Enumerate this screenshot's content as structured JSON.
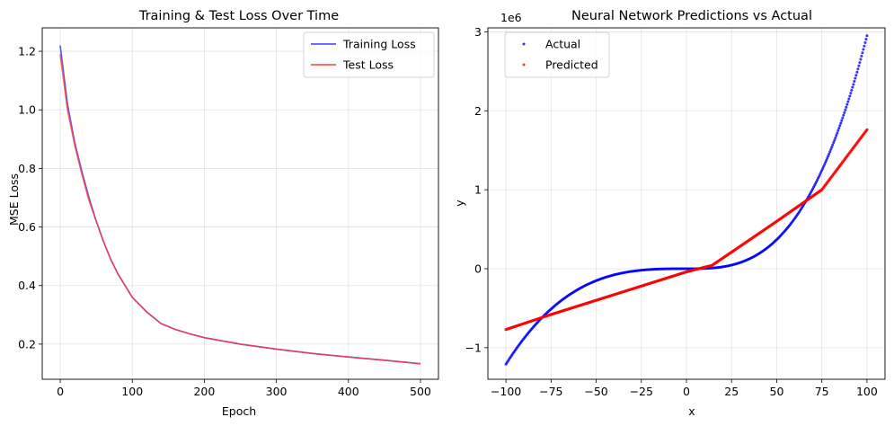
{
  "chart_data": [
    {
      "type": "line",
      "title": "Training & Test Loss Over Time",
      "xlabel": "Epoch",
      "ylabel": "MSE Loss",
      "xlim": [
        -25,
        525
      ],
      "ylim": [
        0.08,
        1.28
      ],
      "xticks": [
        0,
        100,
        200,
        300,
        400,
        500
      ],
      "yticks": [
        0.2,
        0.4,
        0.6,
        0.8,
        1.0,
        1.2
      ],
      "xtick_labels": [
        "0",
        "100",
        "200",
        "300",
        "400",
        "500"
      ],
      "ytick_labels": [
        "0.2",
        "0.4",
        "0.6",
        "0.8",
        "1.0",
        "1.2"
      ],
      "grid": true,
      "legend_position": "top-right",
      "x": [
        0,
        10,
        20,
        30,
        40,
        50,
        60,
        70,
        80,
        90,
        100,
        120,
        140,
        160,
        180,
        200,
        250,
        300,
        350,
        400,
        450,
        500
      ],
      "series": [
        {
          "name": "Training Loss",
          "color": "#3b3bff",
          "values": [
            1.22,
            1.02,
            0.89,
            0.79,
            0.7,
            0.62,
            0.55,
            0.49,
            0.44,
            0.4,
            0.36,
            0.31,
            0.27,
            0.25,
            0.235,
            0.222,
            0.2,
            0.183,
            0.168,
            0.156,
            0.145,
            0.133
          ]
        },
        {
          "name": "Test Loss",
          "color": "#ff3b3b",
          "values": [
            1.19,
            1.0,
            0.88,
            0.78,
            0.69,
            0.62,
            0.55,
            0.49,
            0.44,
            0.4,
            0.36,
            0.31,
            0.27,
            0.25,
            0.235,
            0.222,
            0.2,
            0.183,
            0.168,
            0.156,
            0.145,
            0.133
          ]
        }
      ]
    },
    {
      "type": "scatter",
      "title": "Neural Network Predictions vs Actual",
      "xlabel": "x",
      "ylabel": "y",
      "y_offset_label": "1e6",
      "xlim": [
        -110,
        110
      ],
      "ylim": [
        -1.4,
        3.05
      ],
      "xticks": [
        -100,
        -75,
        -50,
        -25,
        0,
        25,
        50,
        75,
        100
      ],
      "yticks": [
        -1,
        0,
        1,
        2,
        3
      ],
      "xtick_labels": [
        "−100",
        "−75",
        "−50",
        "−25",
        "0",
        "25",
        "50",
        "75",
        "100"
      ],
      "ytick_labels": [
        "−1",
        "0",
        "1",
        "2",
        "3"
      ],
      "grid": true,
      "legend_position": "top-left",
      "series": [
        {
          "name": "Actual",
          "color": "#0000ff",
          "description": "y = x^3 + noise, sampled densely from -100 to 100",
          "x_range": [
            -100,
            100
          ],
          "formula_points": [
            [
              -100,
              -1.21
            ],
            [
              -75,
              -0.55
            ],
            [
              -50,
              -0.14
            ],
            [
              -25,
              -0.02
            ],
            [
              0,
              0.0
            ],
            [
              25,
              0.02
            ],
            [
              50,
              0.14
            ],
            [
              75,
              1.05
            ],
            [
              100,
              2.95
            ]
          ]
        },
        {
          "name": "Predicted",
          "color": "#ff0000",
          "points": [
            [
              -100,
              -0.77
            ],
            [
              -75,
              -0.58
            ],
            [
              -50,
              -0.4
            ],
            [
              -25,
              -0.22
            ],
            [
              0,
              -0.04
            ],
            [
              12,
              0.03
            ],
            [
              14,
              0.04
            ],
            [
              25,
              0.21
            ],
            [
              50,
              0.6
            ],
            [
              75,
              1.0
            ],
            [
              100,
              1.76
            ]
          ]
        }
      ]
    }
  ]
}
